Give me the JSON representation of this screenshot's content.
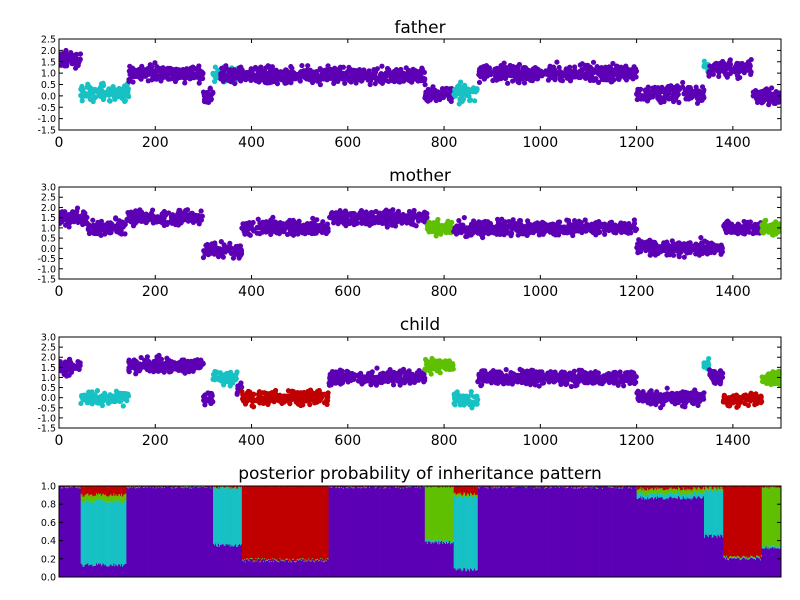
{
  "colors": {
    "purple": "#5d00b5",
    "cyan": "#17c1c4",
    "green": "#5ec000",
    "red": "#c00000"
  },
  "chart_data": [
    {
      "type": "scatter",
      "title": "father",
      "xlabel": "",
      "ylabel": "",
      "xlim": [
        0,
        1500
      ],
      "ylim": [
        -1.5,
        2.5
      ],
      "yticks": [
        "2.5",
        "2.0",
        "1.5",
        "1.0",
        "0.5",
        "0.0",
        "-0.5",
        "-1.0",
        "-1.5"
      ],
      "xticks": [
        "0",
        "200",
        "400",
        "600",
        "800",
        "1000",
        "1200",
        "1400"
      ],
      "show_xticks": true,
      "segments": [
        {
          "x": [
            0,
            45
          ],
          "y": 1.6,
          "color": "purple"
        },
        {
          "x": [
            45,
            145
          ],
          "y": 0.15,
          "color": "cyan"
        },
        {
          "x": [
            145,
            300
          ],
          "y": 1.0,
          "color": "purple"
        },
        {
          "x": [
            300,
            320
          ],
          "y": 0.0,
          "color": "purple"
        },
        {
          "x": [
            320,
            370
          ],
          "y": 0.9,
          "color": "cyan"
        },
        {
          "x": [
            335,
            760
          ],
          "y": 0.9,
          "color": "purple"
        },
        {
          "x": [
            760,
            820
          ],
          "y": 0.1,
          "color": "purple"
        },
        {
          "x": [
            820,
            870
          ],
          "y": 0.1,
          "color": "cyan"
        },
        {
          "x": [
            870,
            1200
          ],
          "y": 1.0,
          "color": "purple"
        },
        {
          "x": [
            1200,
            1340
          ],
          "y": 0.1,
          "color": "purple"
        },
        {
          "x": [
            1340,
            1350
          ],
          "y": 1.3,
          "color": "cyan"
        },
        {
          "x": [
            1350,
            1440
          ],
          "y": 1.2,
          "color": "purple"
        },
        {
          "x": [
            1440,
            1500
          ],
          "y": 0.0,
          "color": "purple"
        }
      ]
    },
    {
      "type": "scatter",
      "title": "mother",
      "xlabel": "",
      "ylabel": "",
      "xlim": [
        0,
        1500
      ],
      "ylim": [
        -1.5,
        3.0
      ],
      "yticks": [
        "3.0",
        "2.5",
        "2.0",
        "1.5",
        "1.0",
        "0.5",
        "0.0",
        "-0.5",
        "-1.0",
        "-1.5"
      ],
      "xticks": [
        "0",
        "200",
        "400",
        "600",
        "800",
        "1000",
        "1200",
        "1400"
      ],
      "show_xticks": true,
      "segments": [
        {
          "x": [
            0,
            60
          ],
          "y": 1.5,
          "color": "purple"
        },
        {
          "x": [
            60,
            140
          ],
          "y": 1.0,
          "color": "purple"
        },
        {
          "x": [
            140,
            300
          ],
          "y": 1.5,
          "color": "purple"
        },
        {
          "x": [
            300,
            380
          ],
          "y": -0.1,
          "color": "purple"
        },
        {
          "x": [
            380,
            560
          ],
          "y": 1.0,
          "color": "purple"
        },
        {
          "x": [
            560,
            765
          ],
          "y": 1.5,
          "color": "purple"
        },
        {
          "x": [
            765,
            820
          ],
          "y": 1.0,
          "color": "green"
        },
        {
          "x": [
            820,
            1200
          ],
          "y": 1.0,
          "color": "purple"
        },
        {
          "x": [
            1200,
            1380
          ],
          "y": 0.0,
          "color": "purple"
        },
        {
          "x": [
            1380,
            1460
          ],
          "y": 1.0,
          "color": "purple"
        },
        {
          "x": [
            1460,
            1500
          ],
          "y": 1.0,
          "color": "green"
        }
      ]
    },
    {
      "type": "scatter",
      "title": "child",
      "xlabel": "",
      "ylabel": "",
      "xlim": [
        0,
        1500
      ],
      "ylim": [
        -1.5,
        3.0
      ],
      "yticks": [
        "3.0",
        "2.5",
        "2.0",
        "1.5",
        "1.0",
        "0.5",
        "0.0",
        "-0.5",
        "-1.0",
        "-1.5"
      ],
      "xticks": [
        "0",
        "200",
        "400",
        "600",
        "800",
        "1000",
        "1200",
        "1400"
      ],
      "show_xticks": true,
      "segments": [
        {
          "x": [
            0,
            45
          ],
          "y": 1.5,
          "color": "purple"
        },
        {
          "x": [
            45,
            145
          ],
          "y": 0.0,
          "color": "cyan"
        },
        {
          "x": [
            145,
            300
          ],
          "y": 1.6,
          "color": "purple"
        },
        {
          "x": [
            300,
            320
          ],
          "y": 0.0,
          "color": "purple"
        },
        {
          "x": [
            320,
            370
          ],
          "y": 1.0,
          "color": "cyan"
        },
        {
          "x": [
            370,
            380
          ],
          "y": 0.5,
          "color": "purple"
        },
        {
          "x": [
            380,
            560
          ],
          "y": 0.0,
          "color": "red"
        },
        {
          "x": [
            560,
            760
          ],
          "y": 1.0,
          "color": "purple"
        },
        {
          "x": [
            760,
            820
          ],
          "y": 1.6,
          "color": "green"
        },
        {
          "x": [
            820,
            870
          ],
          "y": -0.1,
          "color": "cyan"
        },
        {
          "x": [
            870,
            1200
          ],
          "y": 1.0,
          "color": "purple"
        },
        {
          "x": [
            1200,
            1340
          ],
          "y": 0.0,
          "color": "purple"
        },
        {
          "x": [
            1340,
            1350
          ],
          "y": 1.6,
          "color": "cyan"
        },
        {
          "x": [
            1350,
            1380
          ],
          "y": 1.0,
          "color": "purple"
        },
        {
          "x": [
            1380,
            1460
          ],
          "y": -0.1,
          "color": "red"
        },
        {
          "x": [
            1460,
            1500
          ],
          "y": 1.0,
          "color": "green"
        }
      ]
    },
    {
      "type": "area",
      "title": "posterior probability of inheritance pattern",
      "xlabel": "",
      "ylabel": "",
      "xlim": [
        0,
        1500
      ],
      "ylim": [
        0.0,
        1.0
      ],
      "yticks": [
        "1.0",
        "0.8",
        "0.6",
        "0.4",
        "0.2",
        "0.0"
      ],
      "xticks": [],
      "show_xticks": false,
      "stack_order": [
        "purple",
        "cyan",
        "green",
        "red"
      ],
      "regions": [
        {
          "x": [
            0,
            45
          ],
          "purple": 0.99,
          "cyan": 0.005,
          "green": 0.003,
          "red": 0.002
        },
        {
          "x": [
            45,
            140
          ],
          "purple": 0.13,
          "cyan": 0.7,
          "green": 0.07,
          "red": 0.1
        },
        {
          "x": [
            140,
            320
          ],
          "purple": 0.99,
          "cyan": 0.005,
          "green": 0.003,
          "red": 0.002
        },
        {
          "x": [
            320,
            380
          ],
          "purple": 0.35,
          "cyan": 0.63,
          "green": 0.01,
          "red": 0.01
        },
        {
          "x": [
            380,
            560
          ],
          "purple": 0.18,
          "cyan": 0.005,
          "green": 0.005,
          "red": 0.81
        },
        {
          "x": [
            560,
            760
          ],
          "purple": 0.99,
          "cyan": 0.005,
          "green": 0.003,
          "red": 0.002
        },
        {
          "x": [
            760,
            820
          ],
          "purple": 0.38,
          "cyan": 0.02,
          "green": 0.6,
          "red": 0.0
        },
        {
          "x": [
            820,
            870
          ],
          "purple": 0.08,
          "cyan": 0.8,
          "green": 0.03,
          "red": 0.09
        },
        {
          "x": [
            870,
            1200
          ],
          "purple": 0.99,
          "cyan": 0.005,
          "green": 0.003,
          "red": 0.002
        },
        {
          "x": [
            1200,
            1340
          ],
          "purple": 0.87,
          "cyan": 0.05,
          "green": 0.05,
          "red": 0.03
        },
        {
          "x": [
            1340,
            1380
          ],
          "purple": 0.45,
          "cyan": 0.5,
          "green": 0.03,
          "red": 0.02
        },
        {
          "x": [
            1380,
            1460
          ],
          "purple": 0.2,
          "cyan": 0.01,
          "green": 0.01,
          "red": 0.78
        },
        {
          "x": [
            1460,
            1500
          ],
          "purple": 0.32,
          "cyan": 0.02,
          "green": 0.65,
          "red": 0.01
        }
      ]
    }
  ]
}
